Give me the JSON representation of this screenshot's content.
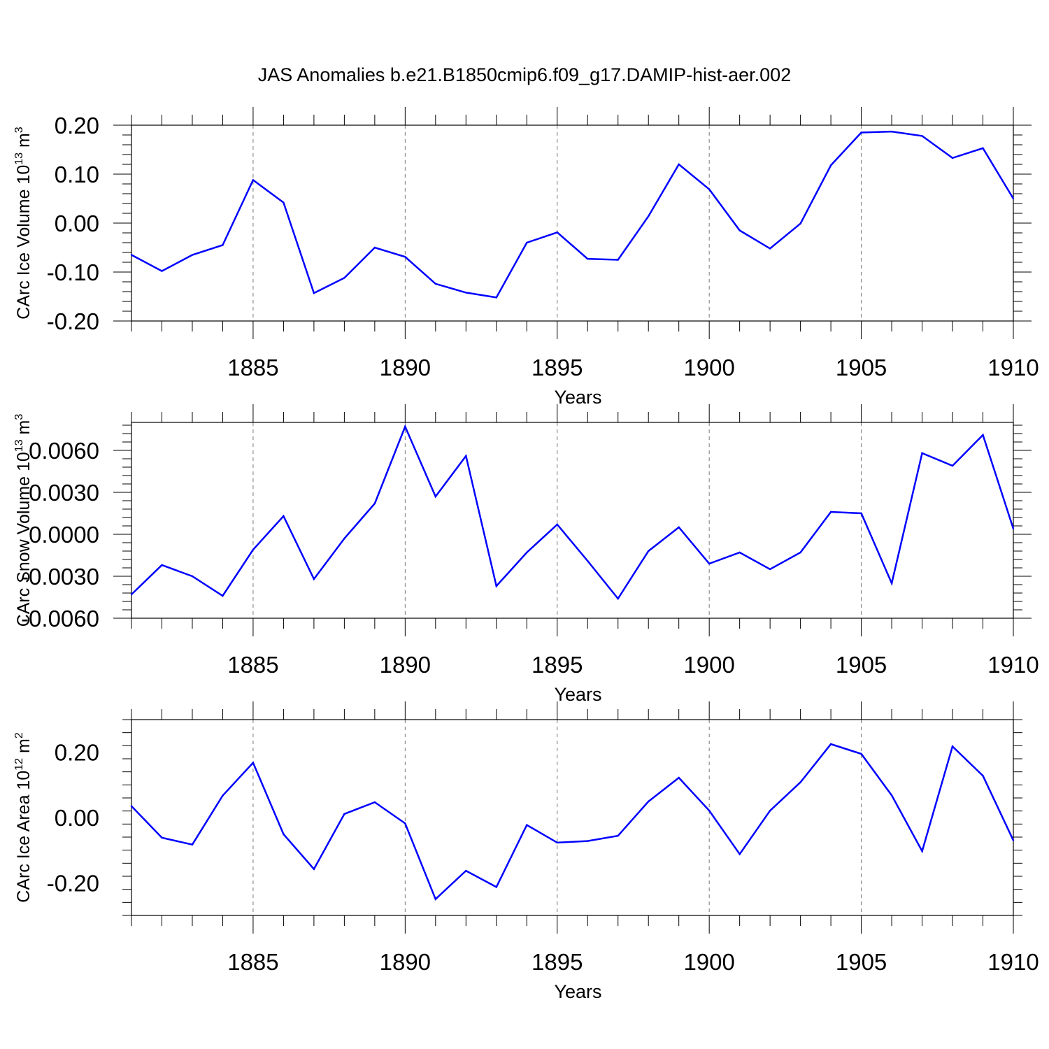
{
  "title": "JAS Anomalies b.e21.B1850cmip6.f09_g17.DAMIP-hist-aer.002",
  "colors": {
    "line": "#0000ff",
    "axis": "#000000",
    "grid": "#777777"
  },
  "chart_data": [
    {
      "type": "line",
      "ylabel": "CArc Ice Volume 10",
      "ylabel_exp": "13",
      "ylabel_unit": " m",
      "ylabel_unit_exp": "3",
      "xlabel": "Years",
      "xlim": [
        1881,
        1910
      ],
      "ylim": [
        -0.2,
        0.2
      ],
      "xticks": [
        1885,
        1890,
        1895,
        1900,
        1905,
        1910
      ],
      "xtick_labels": [
        "1885",
        "1890",
        "1895",
        "1900",
        "1905",
        "1910"
      ],
      "yticks": [
        0.2,
        0.1,
        0.0,
        -0.1,
        -0.2
      ],
      "ytick_labels": [
        "0.20",
        "0.10",
        "0.00",
        "-0.10",
        "-0.20"
      ],
      "x": [
        1881,
        1882,
        1883,
        1884,
        1885,
        1886,
        1887,
        1888,
        1889,
        1890,
        1891,
        1892,
        1893,
        1894,
        1895,
        1896,
        1897,
        1898,
        1899,
        1900,
        1901,
        1902,
        1903,
        1904,
        1905,
        1906,
        1907,
        1908,
        1909,
        1910
      ],
      "y": [
        -0.065,
        -0.098,
        -0.065,
        -0.045,
        0.088,
        0.042,
        -0.143,
        -0.112,
        -0.05,
        -0.069,
        -0.124,
        -0.142,
        -0.152,
        -0.04,
        -0.019,
        -0.073,
        -0.075,
        0.014,
        0.12,
        0.069,
        -0.015,
        -0.052,
        -0.001,
        0.118,
        0.185,
        0.187,
        0.178,
        0.133,
        0.153,
        0.05
      ]
    },
    {
      "type": "line",
      "ylabel": "CArc Snow Volume 10",
      "ylabel_exp": "13",
      "ylabel_unit": " m",
      "ylabel_unit_exp": "3",
      "xlabel": "Years",
      "xlim": [
        1881,
        1910
      ],
      "ylim": [
        -0.006,
        0.008
      ],
      "xticks": [
        1885,
        1890,
        1895,
        1900,
        1905,
        1910
      ],
      "xtick_labels": [
        "1885",
        "1890",
        "1895",
        "1900",
        "1905",
        "1910"
      ],
      "yticks": [
        0.006,
        0.003,
        0.0,
        -0.003,
        -0.006
      ],
      "ytick_labels": [
        "0.0060",
        "0.0030",
        "0.0000",
        "-0.0030",
        "-0.0060"
      ],
      "x": [
        1881,
        1882,
        1883,
        1884,
        1885,
        1886,
        1887,
        1888,
        1889,
        1890,
        1891,
        1892,
        1893,
        1894,
        1895,
        1896,
        1897,
        1898,
        1899,
        1900,
        1901,
        1902,
        1903,
        1904,
        1905,
        1906,
        1907,
        1908,
        1909,
        1910
      ],
      "y": [
        -0.0043,
        -0.0022,
        -0.003,
        -0.0044,
        -0.0011,
        0.0013,
        -0.0032,
        -0.0003,
        0.0022,
        0.0077,
        0.0027,
        0.0056,
        -0.0037,
        -0.0013,
        0.0007,
        -0.0019,
        -0.0046,
        -0.0012,
        0.0005,
        -0.0021,
        -0.0013,
        -0.0025,
        -0.0013,
        0.0016,
        0.0015,
        -0.0035,
        0.0058,
        0.0049,
        0.0071,
        0.0004
      ]
    },
    {
      "type": "line",
      "ylabel": "CArc Ice Area 10",
      "ylabel_exp": "12",
      "ylabel_unit": " m",
      "ylabel_unit_exp": "2",
      "xlabel": "Years",
      "xlim": [
        1881,
        1910
      ],
      "ylim": [
        -0.3,
        0.3
      ],
      "xticks": [
        1885,
        1890,
        1895,
        1900,
        1905,
        1910
      ],
      "xtick_labels": [
        "1885",
        "1890",
        "1895",
        "1900",
        "1905",
        "1910"
      ],
      "yticks": [
        0.2,
        0.0,
        -0.2
      ],
      "ytick_labels": [
        "0.20",
        "0.00",
        "-0.20"
      ],
      "x": [
        1881,
        1882,
        1883,
        1884,
        1885,
        1886,
        1887,
        1888,
        1889,
        1890,
        1891,
        1892,
        1893,
        1894,
        1895,
        1896,
        1897,
        1898,
        1899,
        1900,
        1901,
        1902,
        1903,
        1904,
        1905,
        1906,
        1907,
        1908,
        1909,
        1910
      ],
      "y": [
        0.035,
        -0.062,
        -0.083,
        0.067,
        0.168,
        -0.051,
        -0.158,
        0.011,
        0.047,
        -0.018,
        -0.25,
        -0.163,
        -0.213,
        -0.023,
        -0.077,
        -0.072,
        -0.056,
        0.049,
        0.122,
        0.021,
        -0.112,
        0.021,
        0.108,
        0.225,
        0.195,
        0.068,
        -0.103,
        0.218,
        0.128,
        -0.07
      ]
    }
  ]
}
